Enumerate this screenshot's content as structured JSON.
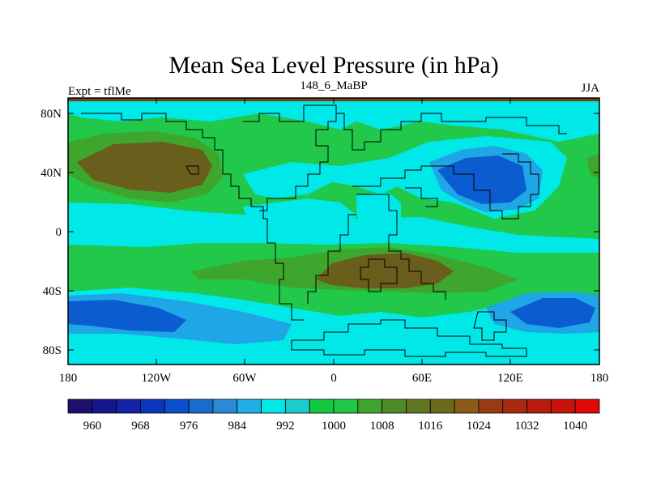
{
  "title": "Mean Sea Level Pressure (in hPa)",
  "left_label": "Expt = tflMe",
  "center_label": "148_6_MaBP",
  "right_label": "JJA",
  "y_ticks": [
    "80N",
    "40N",
    "0",
    "40S",
    "80S"
  ],
  "x_ticks": [
    "180",
    "120W",
    "60W",
    "0",
    "60E",
    "120E",
    "180"
  ],
  "colorbar": {
    "colors": [
      "#1c0f6e",
      "#15168a",
      "#1322a4",
      "#0b35bd",
      "#0a4fcc",
      "#1a6ad0",
      "#2b8ad6",
      "#1eaee6",
      "#00e8e8",
      "#1ccccc",
      "#12c83e",
      "#20c848",
      "#3ea52d",
      "#4e8a25",
      "#5e7720",
      "#6e6a1c",
      "#8a5a17",
      "#9a3a12",
      "#a82b0f",
      "#b81c0c",
      "#c8120a",
      "#e00808"
    ],
    "labels": [
      "960",
      "968",
      "976",
      "984",
      "992",
      "1000",
      "1008",
      "1016",
      "1024",
      "1032",
      "1040"
    ]
  },
  "map_colors": {
    "low_strong": "#0a5cd0",
    "low_mid": "#1ea6e6",
    "near_1000": "#00e8e8",
    "normal": "#21c84a",
    "high": "#3ea52d",
    "high_strong": "#6a5e1c",
    "pole_band": "#7a3e12",
    "coast": "#000000"
  }
}
